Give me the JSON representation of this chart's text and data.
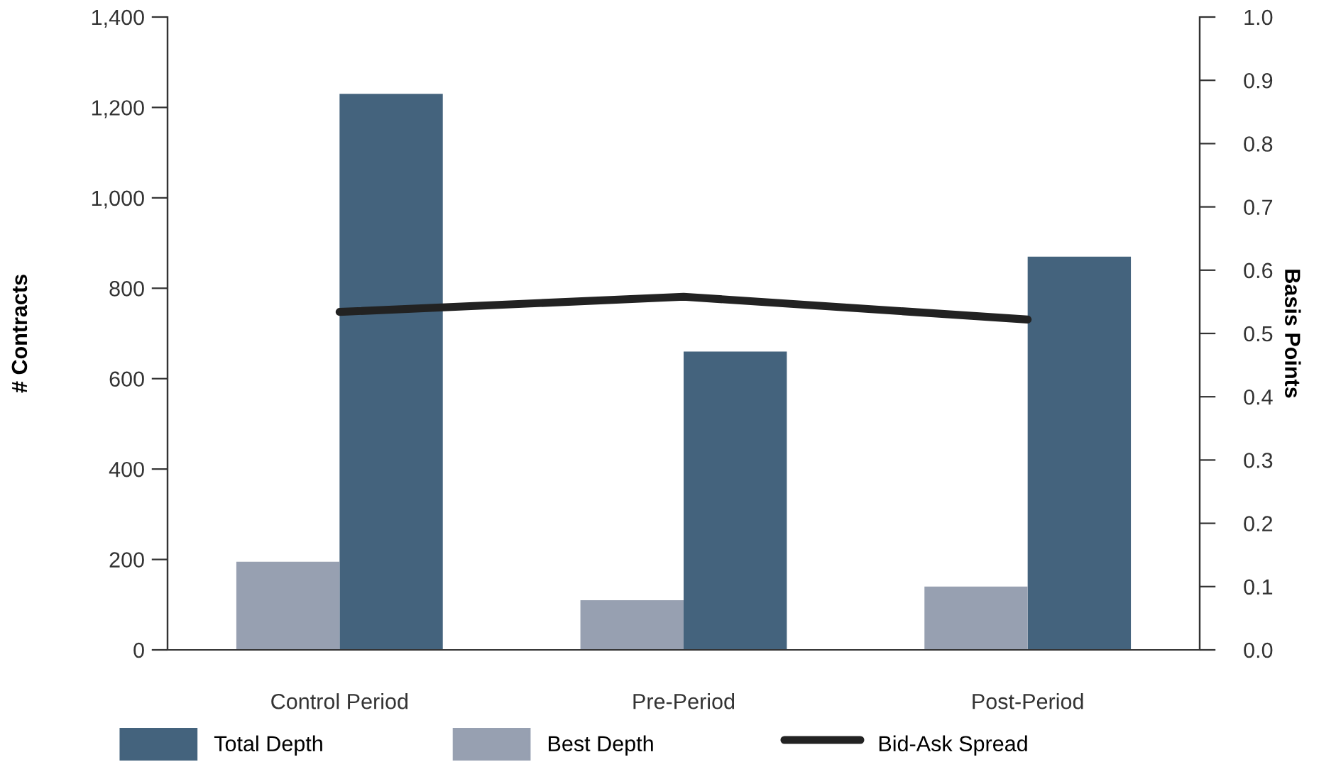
{
  "chart_data": {
    "type": "bar",
    "categories": [
      "Control Period",
      "Pre-Period",
      "Post-Period"
    ],
    "ylabel": "# Contracts",
    "y2label": "Basis Points",
    "ylim": [
      0,
      1400
    ],
    "yticks": [
      0,
      200,
      400,
      600,
      800,
      {
        "value": 1000,
        "label": "1,000"
      },
      {
        "value": 1200,
        "label": "1,200"
      },
      {
        "value": 1400,
        "label": "1,400"
      }
    ],
    "y2lim": [
      0,
      1.0
    ],
    "y2ticks": [
      {
        "value": 0,
        "label": "0.0"
      },
      0.1,
      0.2,
      0.3,
      0.4,
      0.5,
      0.6,
      0.7,
      0.8,
      0.9,
      {
        "value": 1,
        "label": "1.0"
      }
    ],
    "series": [
      {
        "name": "Total Depth",
        "color": "#44637d",
        "values": [
          1230,
          660,
          870
        ]
      },
      {
        "name": "Best Depth",
        "color": "#97a0b1",
        "values": [
          195,
          110,
          140
        ]
      },
      {
        "name": "Bid-Ask Spread",
        "type": "line",
        "axis": "y2",
        "color": "#222222",
        "values": [
          0.534,
          0.558,
          0.522
        ]
      }
    ],
    "legend": "bottom",
    "grid": false
  }
}
